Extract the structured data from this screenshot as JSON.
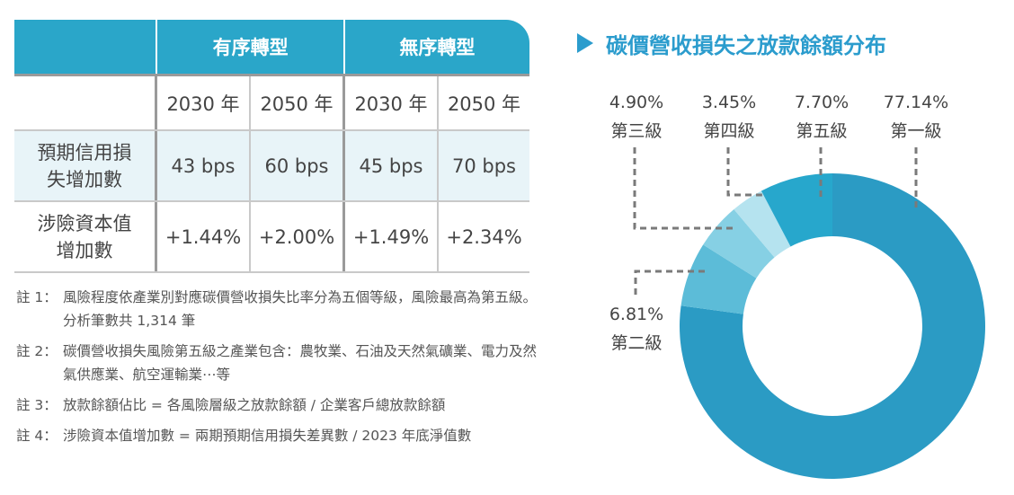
{
  "table": {
    "groups": [
      "有序轉型",
      "無序轉型"
    ],
    "years": [
      "2030 年",
      "2050 年",
      "2030 年",
      "2050 年"
    ],
    "rows": [
      {
        "label_l1": "預期信用損",
        "label_l2": "失增加數",
        "values": [
          "43 bps",
          "60 bps",
          "45 bps",
          "70 bps"
        ]
      },
      {
        "label_l1": "涉險資本值",
        "label_l2": "增加數",
        "values": [
          "+1.44%",
          "+2.00%",
          "+1.49%",
          "+2.34%"
        ]
      }
    ]
  },
  "notes": [
    {
      "label": "註 1：",
      "text": "風險程度依產業別對應碳價營收損失比率分為五個等級，風險最高為第五級。分析筆數共 1,314 筆"
    },
    {
      "label": "註 2：",
      "text": "碳價營收損失風險第五級之產業包含：農牧業、石油及天然氣礦業、電力及然氣供應業、航空運輸業⋯等"
    },
    {
      "label": "註 3：",
      "text": "放款餘額佔比 = 各風險層級之放款餘額 / 企業客戶總放款餘額"
    },
    {
      "label": "註 4：",
      "text": "涉險資本值增加數 = 兩期預期信用損失差異數 / 2023 年底淨值數"
    }
  ],
  "chart_data": {
    "type": "pie",
    "title": "碳價營收損失之放款餘額分布",
    "categories": [
      "第一級",
      "第二級",
      "第三級",
      "第四級",
      "第五級"
    ],
    "values": [
      77.14,
      6.81,
      4.9,
      3.45,
      7.7
    ],
    "value_labels": [
      "77.14%",
      "6.81%",
      "4.90%",
      "3.45%",
      "7.70%"
    ],
    "colors": [
      "#2b9bc4",
      "#5cbcd8",
      "#86d0e4",
      "#b5e3ef",
      "#27a7cc"
    ],
    "donut": true
  }
}
